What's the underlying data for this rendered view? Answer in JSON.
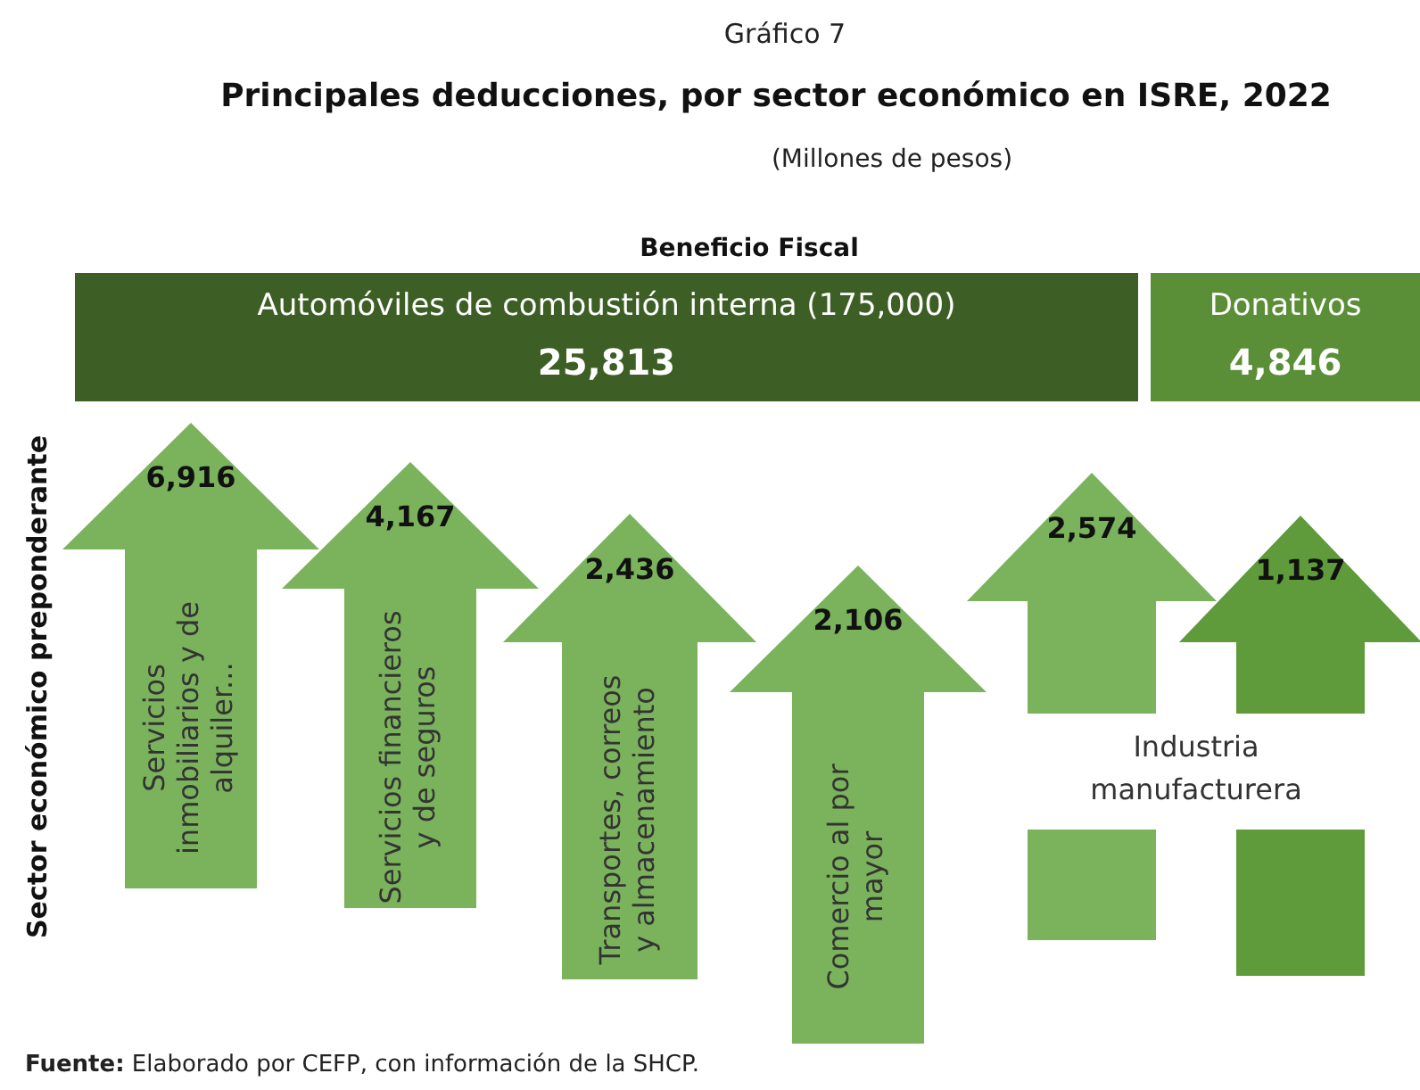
{
  "chart_data": [
    {
      "type": "other",
      "title": "Principales deducciones, por sector económico en ISRE, 2022",
      "subtitle": "(Millones de pesos)",
      "annotations": [
        "Gráfico 7"
      ],
      "xlabel": "Beneficio Fiscal",
      "categories": [
        "Automóviles de combustión interna (175,000)",
        "Donativos"
      ],
      "values": [
        25813,
        4846
      ],
      "value_labels": [
        "25,813",
        "4,846"
      ],
      "colors": [
        "#3d5e24",
        "#5a8f37"
      ]
    },
    {
      "type": "other",
      "ylabel": "Sector económico preponderante",
      "annotations": [
        "Fuente: Elaborado por CEFP, con información de la SHCP."
      ],
      "categories": [
        "Servicios inmobiliarios y de alquiler...",
        "Servicios financieros y de seguros",
        "Transportes, correos y almacenamiento",
        "Comercio al por mayor",
        "Industria manufacturera"
      ],
      "series": [
        {
          "color": "#7ab35c",
          "values": [
            6916,
            4167,
            2436,
            2106,
            2574
          ],
          "value_labels": [
            "6,916",
            "4,167",
            "2,436",
            "2,106",
            "2,574"
          ]
        },
        {
          "color": "#5f9a3b",
          "values": [
            null,
            null,
            null,
            null,
            1137
          ],
          "value_labels": [
            null,
            null,
            null,
            null,
            "1,137"
          ]
        }
      ]
    }
  ]
}
